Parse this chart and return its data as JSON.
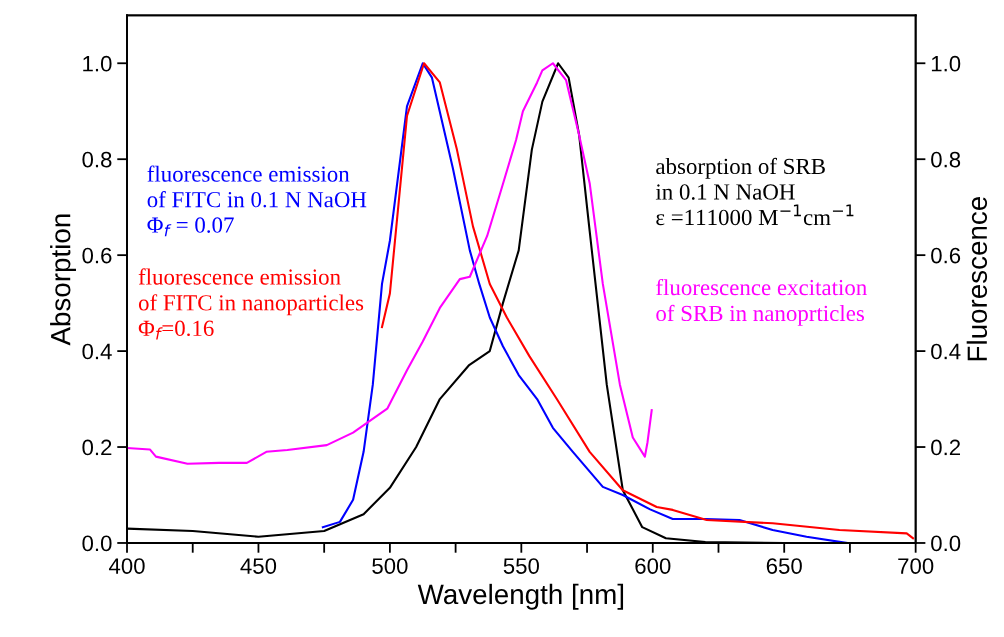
{
  "chart_data": {
    "type": "line",
    "xlabel": "Wavelength [nm]",
    "ylabel": "Absorption",
    "y2label": "Fluorescence",
    "xlim": [
      400,
      700
    ],
    "xticks": [
      400,
      {
        "value": 425,
        "label": null
      },
      450,
      {
        "value": 475,
        "label": null
      },
      500,
      {
        "value": 525,
        "label": null
      },
      550,
      {
        "value": 575,
        "label": null
      },
      600,
      {
        "value": 625,
        "label": null
      },
      650,
      {
        "value": 675,
        "label": null
      },
      700
    ],
    "ylim": [
      0,
      1.1
    ],
    "yticks": [
      {
        "value": 0,
        "label": "0.0"
      },
      0.2,
      0.4,
      0.6,
      0.8,
      {
        "value": 1,
        "label": "1.0"
      }
    ],
    "y2lim": [
      0,
      1.1
    ],
    "y2ticks": [
      {
        "value": 0,
        "label": "0.0"
      },
      0.2,
      0.4,
      0.6,
      0.8,
      {
        "value": 1,
        "label": "1.0"
      }
    ],
    "grid": false,
    "legend": false,
    "marker": "none",
    "line_style": "solid",
    "series": [
      {
        "name": "fluorescence emission\nof FITC in 0.1 N NaOH\nΦ$_{f}$ = 0.07",
        "color": "#0000ff",
        "axis": "y2",
        "x": [
          474.5,
          481,
          486,
          490,
          493.5,
          497,
          500,
          506.5,
          512.5,
          516,
          520,
          524,
          530.4,
          534,
          538,
          543,
          549,
          556,
          562,
          569.6,
          581,
          588.6,
          599,
          607.6,
          620,
          633,
          645.6,
          658.5,
          673.8
        ],
        "values": [
          0.033,
          0.044,
          0.09,
          0.19,
          0.33,
          0.54,
          0.63,
          0.91,
          1.0,
          0.97,
          0.875,
          0.78,
          0.61,
          0.54,
          0.47,
          0.41,
          0.35,
          0.3,
          0.24,
          0.19,
          0.117,
          0.1,
          0.07,
          0.05,
          0.05,
          0.048,
          0.027,
          0.013,
          0.0
        ]
      },
      {
        "name": "fluorescence emission\nof FITC in nanoparticles\nΦ$_{f}$=0.16",
        "color": "#ff0000",
        "axis": "y2",
        "x": [
          497,
          500,
          506.5,
          513,
          519,
          525.5,
          531.6,
          538,
          544.5,
          553,
          563.5,
          576,
          588.6,
          601.5,
          607.6,
          620.5,
          645.6,
          671,
          696.6,
          699
        ],
        "values": [
          0.45,
          0.52,
          0.89,
          1.0,
          0.96,
          0.82,
          0.66,
          0.54,
          0.47,
          0.39,
          0.3,
          0.19,
          0.11,
          0.075,
          0.069,
          0.048,
          0.041,
          0.027,
          0.02,
          0.01
        ]
      },
      {
        "name": "absorption of SRB\nin 0.1 N NaOH\nε =111000 M$^{−1}$cm$^{−1}$",
        "color": "#000000",
        "x": [
          400,
          425,
          450,
          475,
          490,
          500,
          510,
          519,
          530,
          538,
          543,
          549,
          554,
          558,
          564,
          568,
          572,
          576,
          582.5,
          588.6,
          596,
          605,
          620,
          650,
          690
        ],
        "values": [
          0.03,
          0.025,
          0.013,
          0.025,
          0.06,
          0.115,
          0.2,
          0.3,
          0.37,
          0.4,
          0.5,
          0.61,
          0.82,
          0.92,
          1.0,
          0.97,
          0.85,
          0.65,
          0.33,
          0.11,
          0.033,
          0.01,
          0.002,
          0.0,
          0.0
        ]
      },
      {
        "name": "fluorescence excitation\nof SRB in nanoprticles",
        "color": "#ff00ff",
        "axis": "y2",
        "x": [
          400,
          408.7,
          411,
          423,
          435,
          445.6,
          453,
          461,
          476,
          486,
          499,
          506.5,
          512.5,
          519,
          526.6,
          530.4,
          537,
          542,
          548,
          550.6,
          556,
          558,
          562,
          567,
          572,
          576,
          581,
          587.5,
          592.4,
          597,
          598,
          599.6
        ],
        "values": [
          0.198,
          0.195,
          0.18,
          0.165,
          0.167,
          0.167,
          0.19,
          0.194,
          0.204,
          0.23,
          0.28,
          0.36,
          0.42,
          0.49,
          0.55,
          0.555,
          0.64,
          0.73,
          0.84,
          0.9,
          0.96,
          0.985,
          1.0,
          0.965,
          0.85,
          0.75,
          0.54,
          0.33,
          0.22,
          0.18,
          0.21,
          0.277
        ]
      }
    ]
  }
}
